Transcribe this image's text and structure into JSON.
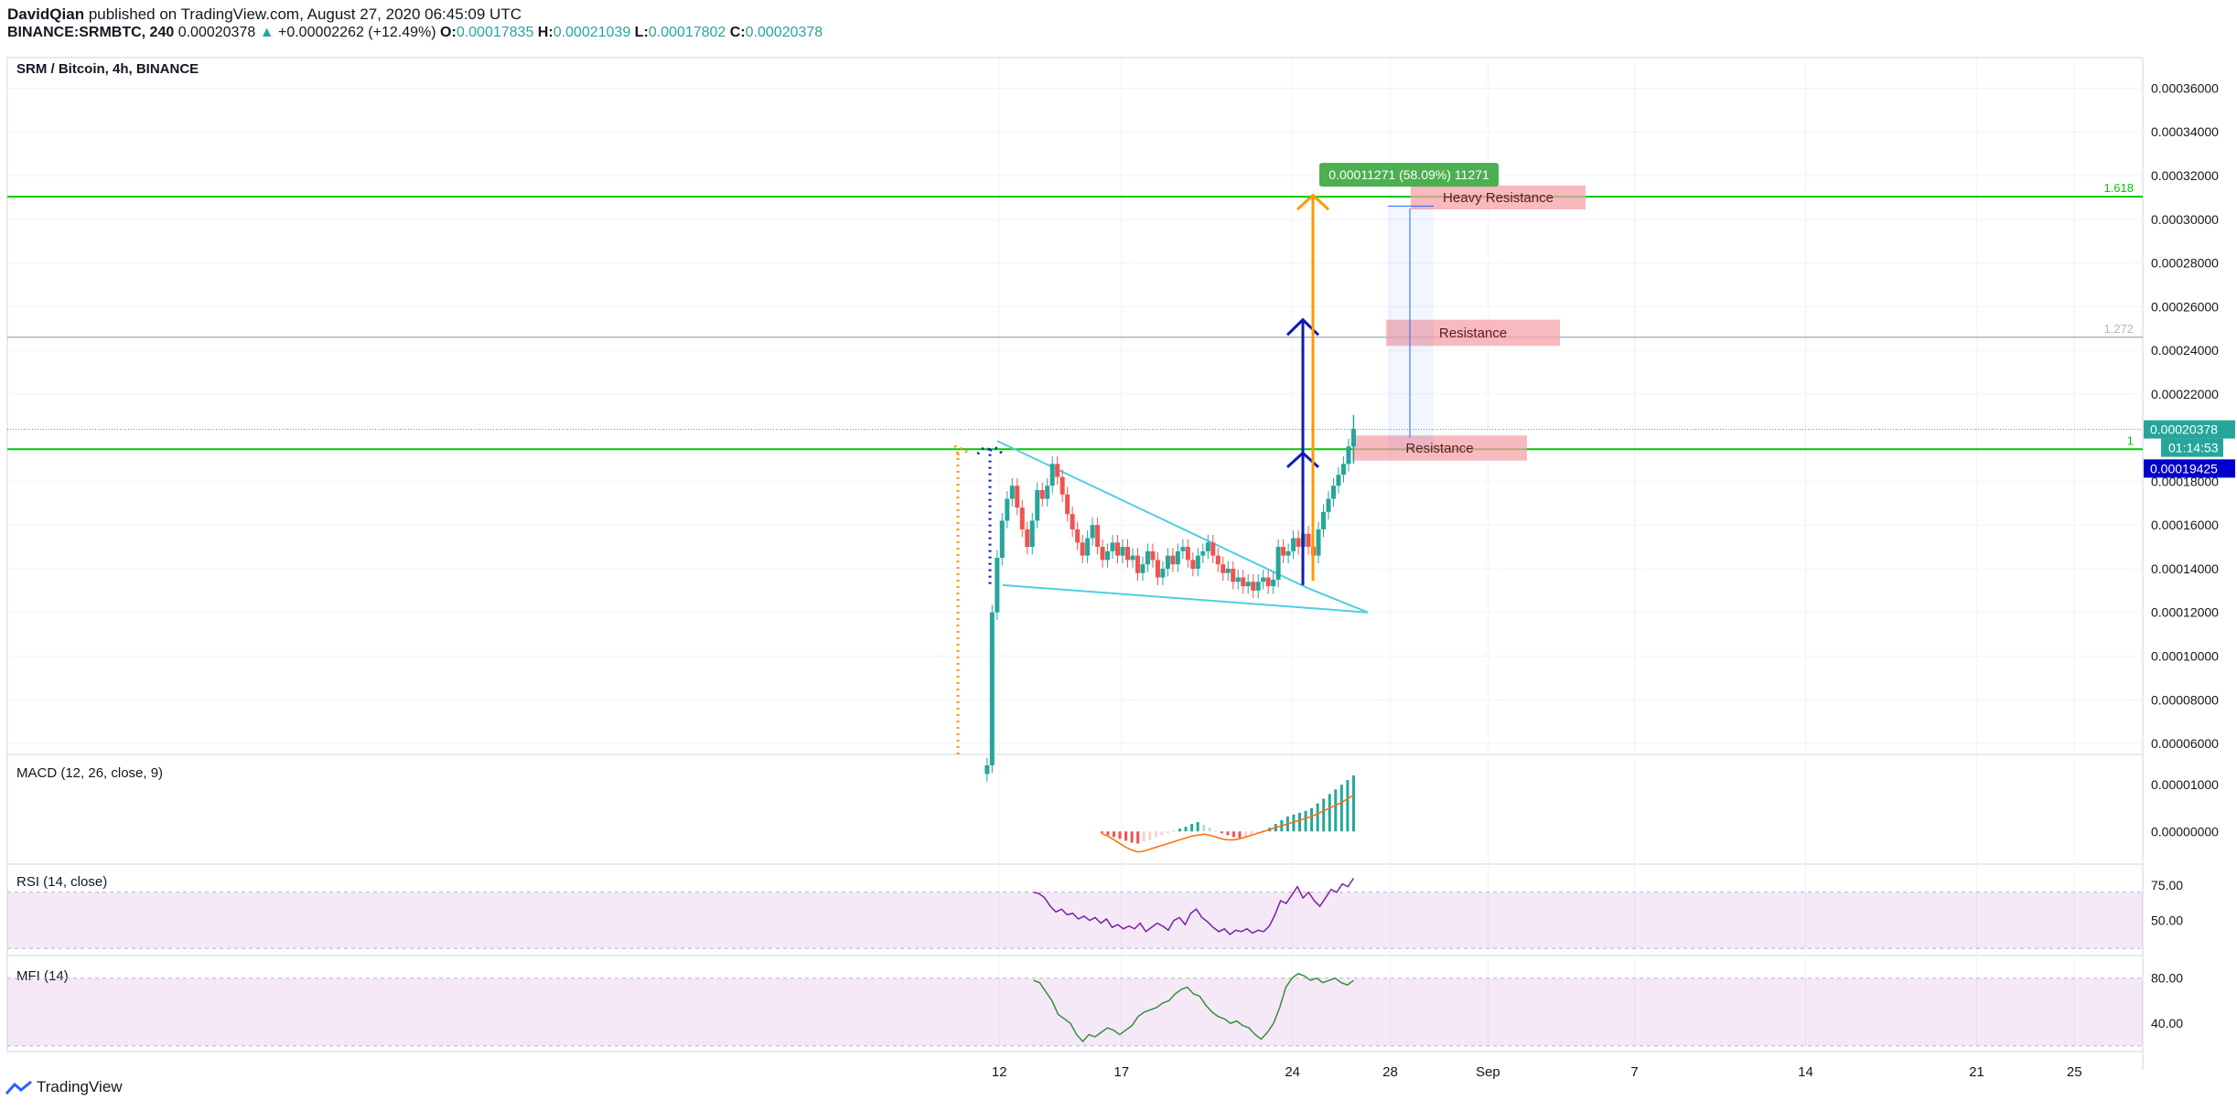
{
  "header": {
    "author": "DavidQian",
    "published_text": " published on TradingView.com, August 27, 2020 06:45:09 UTC",
    "symbol": "BINANCE:SRMBTC, 240",
    "last_price": "0.00020378",
    "change": "+0.00002262 (+12.49%)",
    "o_label": "O:",
    "o_value": "0.00017835",
    "h_label": "H:",
    "h_value": "0.00021039",
    "l_label": "L:",
    "l_value": "0.00017802",
    "c_label": "C:",
    "c_value": "0.00020378"
  },
  "chart_data": [
    {
      "type": "candlestick",
      "title": "SRM / Bitcoin, 4h, BINANCE",
      "y_axis_ticks": [
        "0.00036000",
        "0.00034000",
        "0.00032000",
        "0.00030000",
        "0.00028000",
        "0.00026000",
        "0.00024000",
        "0.00022000",
        "0.00018000",
        "0.00016000",
        "0.00014000",
        "0.00012000",
        "0.00010000",
        "0.00008000",
        "0.00006000"
      ],
      "y_tick_values": [
        0.00036,
        0.00034,
        0.00032,
        0.0003,
        0.00028,
        0.00026,
        0.00024,
        0.00022,
        0.00018,
        0.00016,
        0.00014,
        0.00012,
        0.0001,
        8e-05,
        6e-05
      ],
      "ylim": [
        5.5e-05,
        0.000374
      ],
      "x_axis_ticks": [
        "12",
        "17",
        "24",
        "28",
        "Sep",
        "7",
        "14",
        "21",
        "25"
      ],
      "x_tick_days": [
        12,
        17,
        24,
        28,
        32,
        38,
        45,
        52,
        56
      ],
      "xlim": [
        -28.6,
        58.8
      ],
      "price_labels": {
        "last": "0.00020378",
        "countdown": "01:14:53",
        "marker": "0.00019425"
      },
      "fib_levels": [
        {
          "label": "1.618",
          "value": 0.0003103,
          "color": "#00c800"
        },
        {
          "label": "1.272",
          "value": 0.000246,
          "color": "#b2b5be"
        },
        {
          "label": "1",
          "value": 0.0001947,
          "color": "#00c800"
        }
      ],
      "zones": [
        {
          "label": "Heavy Resistance",
          "from": 0.0003045,
          "to": 0.0003155
        },
        {
          "label": "Resistance",
          "from": 0.000242,
          "to": 0.000254
        },
        {
          "label": "Resistance",
          "from": 0.0001895,
          "to": 0.000201
        }
      ],
      "measure_label": "0.00011271 (58.09%) 11271",
      "candles_close": [
        5e-05,
        0.00012,
        0.000145,
        0.000162,
        0.000172,
        0.000178,
        0.000168,
        0.000158,
        0.00015,
        0.000162,
        0.000176,
        0.000172,
        0.000178,
        0.000188,
        0.000182,
        0.000174,
        0.000165,
        0.000158,
        0.000152,
        0.000146,
        0.000154,
        0.00016,
        0.00015,
        0.000144,
        0.000148,
        0.000152,
        0.000146,
        0.00015,
        0.000144,
        0.000146,
        0.000138,
        0.000142,
        0.000148,
        0.000144,
        0.000136,
        0.00014,
        0.000146,
        0.000142,
        0.000148,
        0.00015,
        0.000144,
        0.00014,
        0.000146,
        0.000148,
        0.000152,
        0.000146,
        0.000142,
        0.000138,
        0.00014,
        0.000134,
        0.000136,
        0.000132,
        0.000134,
        0.00013,
        0.000134,
        0.000136,
        0.000132,
        0.000135,
        0.00015,
        0.000146,
        0.000148,
        0.000154,
        0.00015,
        0.000156,
        0.00015,
        0.000146,
        0.000158,
        0.000166,
        0.000172,
        0.000178,
        0.000183,
        0.000188,
        0.000196,
        0.000204
      ]
    },
    {
      "type": "bar",
      "title": "MACD (12, 26, close, 9)",
      "y_axis_ticks": [
        "0.00001000",
        "0.00000000"
      ],
      "y_tick_values": [
        1e-05,
        0
      ],
      "ylim": [
        -7e-06,
        1.65e-05
      ],
      "histogram": [
        -4e-07,
        -8e-07,
        -1.2e-06,
        -1.6e-06,
        -2e-06,
        -2.4e-06,
        -2.6e-06,
        -2.2e-06,
        -1.8e-06,
        -1.2e-06,
        -8e-07,
        -4e-07,
        2e-07,
        6e-07,
        1e-06,
        1.6e-06,
        2e-06,
        1.4e-06,
        8e-07,
        2e-07,
        -4e-07,
        -8e-07,
        -1.2e-06,
        -1.4e-06,
        -1.2e-06,
        -8e-07,
        -4e-07,
        2e-07,
        8e-07,
        1.6e-06,
        2.4e-06,
        3.2e-06,
        3.6e-06,
        4e-06,
        4.4e-06,
        5e-06,
        6e-06,
        7e-06,
        8e-06,
        9e-06,
        1e-05,
        1.1e-05,
        1.2e-05
      ],
      "signal": [
        -5e-07,
        -1e-06,
        -1.8e-06,
        -2.6e-06,
        -3.4e-06,
        -4e-06,
        -4.4e-06,
        -4.2e-06,
        -3.8e-06,
        -3.4e-06,
        -3e-06,
        -2.6e-06,
        -2.2e-06,
        -1.8e-06,
        -1.4e-06,
        -1e-06,
        -8e-07,
        -6e-07,
        -8e-07,
        -1.2e-06,
        -1.6e-06,
        -1.8e-06,
        -1.8e-06,
        -1.6e-06,
        -1.2e-06,
        -8e-07,
        -4e-07,
        0.0,
        4e-07,
        8e-07,
        1.2e-06,
        1.6e-06,
        2e-06,
        2.4e-06,
        2.8e-06,
        3.2e-06,
        3.8e-06,
        4.4e-06,
        5e-06,
        5.6e-06,
        6.2e-06,
        7e-06,
        7.8e-06
      ]
    },
    {
      "type": "line",
      "title": "RSI (14, close)",
      "y_axis_ticks": [
        "75.00",
        "50.00"
      ],
      "y_tick_values": [
        75,
        50
      ],
      "ylim": [
        25,
        90
      ],
      "band": [
        30,
        70
      ],
      "values": [
        70,
        69,
        66,
        60,
        56,
        58,
        54,
        55,
        51,
        53,
        50,
        52,
        48,
        51,
        45,
        47,
        44,
        46,
        44,
        48,
        42,
        45,
        48,
        46,
        43,
        50,
        52,
        47,
        55,
        58,
        52,
        49,
        45,
        42,
        44,
        40,
        43,
        42,
        44,
        41,
        43,
        42,
        46,
        54,
        64,
        62,
        68,
        74,
        66,
        70,
        64,
        60,
        66,
        72,
        70,
        76,
        74,
        80
      ]
    },
    {
      "type": "line",
      "title": "MFI (14)",
      "y_axis_ticks": [
        "80.00",
        "40.00"
      ],
      "y_tick_values": [
        80,
        40
      ],
      "ylim": [
        15,
        100
      ],
      "band": [
        20,
        80
      ],
      "values": [
        78,
        76,
        68,
        60,
        48,
        44,
        40,
        30,
        24,
        30,
        28,
        32,
        36,
        34,
        30,
        34,
        38,
        46,
        50,
        52,
        54,
        58,
        60,
        66,
        70,
        72,
        66,
        64,
        56,
        50,
        46,
        44,
        40,
        42,
        38,
        36,
        30,
        26,
        32,
        40,
        54,
        72,
        80,
        84,
        82,
        78,
        80,
        76,
        78,
        80,
        76,
        74,
        78
      ]
    }
  ],
  "footer": {
    "brand": "TradingView"
  }
}
